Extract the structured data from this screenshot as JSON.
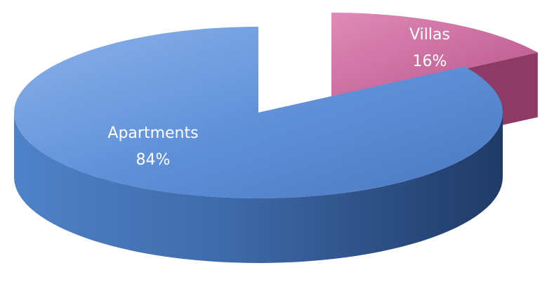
{
  "chart_data": {
    "type": "pie",
    "style": "3d-exploded",
    "title": "",
    "slices": [
      {
        "label": "Apartments",
        "value": 84,
        "value_label": "84%",
        "color": "#5d8fd8",
        "shadow_color": "#24406e"
      },
      {
        "label": "Villas",
        "value": 16,
        "value_label": "16%",
        "color": "#c65f95",
        "shadow_color": "#5a2440"
      }
    ],
    "legend": "none"
  }
}
